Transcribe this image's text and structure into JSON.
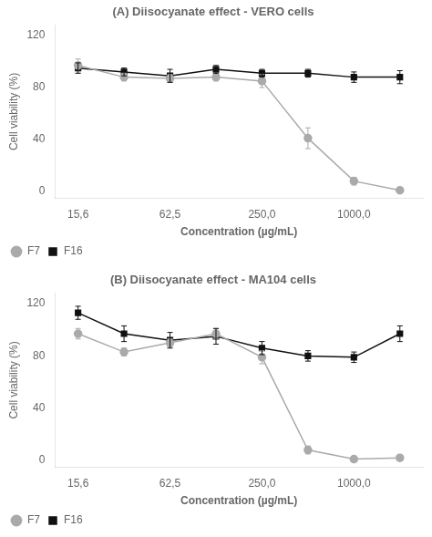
{
  "chart_data": [
    {
      "type": "line",
      "title": "(A) Diisocyanate effect - VERO cells",
      "xlabel": "Concentration (µg/mL)",
      "ylabel": "Cell viability (%)",
      "categories": [
        "15,6",
        null,
        "62,5",
        null,
        "250,0",
        null,
        "1000,0",
        null
      ],
      "series": [
        {
          "name": "F7",
          "color": "#aaaaaa",
          "marker": "circle",
          "values": [
            97,
            88,
            87,
            88,
            85,
            41,
            8,
            1
          ],
          "errors": [
            5,
            3,
            3,
            3,
            5,
            8,
            3,
            1
          ]
        },
        {
          "name": "F16",
          "color": "#111111",
          "marker": "square",
          "values": [
            95,
            92,
            89,
            94,
            91,
            91,
            88,
            88
          ],
          "errors": [
            4,
            3,
            5,
            3,
            3,
            3,
            4,
            5
          ]
        }
      ],
      "ylim": [
        -5,
        128
      ],
      "yticks": [
        0,
        40,
        80,
        120
      ],
      "grid": false,
      "legend": "lower left"
    },
    {
      "type": "line",
      "title": "(B) Diisocyanate effect - MA104 cells",
      "xlabel": "Concentration (µg/mL)",
      "ylabel": "Cell viability (%)",
      "categories": [
        "15,6",
        null,
        "62,5",
        null,
        "250,0",
        null,
        "1000,0",
        null
      ],
      "series": [
        {
          "name": "F7",
          "color": "#aaaaaa",
          "marker": "circle",
          "values": [
            97,
            83,
            90,
            97,
            79,
            8,
            1,
            2
          ],
          "errors": [
            4,
            3,
            3,
            4,
            5,
            3,
            1,
            1
          ]
        },
        {
          "name": "F16",
          "color": "#111111",
          "marker": "square",
          "values": [
            113,
            97,
            92,
            95,
            86,
            80,
            79,
            97
          ],
          "errors": [
            5,
            6,
            6,
            6,
            5,
            4,
            4,
            6
          ]
        }
      ],
      "ylim": [
        -5,
        128
      ],
      "yticks": [
        0,
        40,
        80,
        120
      ],
      "grid": false,
      "legend": "lower left"
    }
  ]
}
